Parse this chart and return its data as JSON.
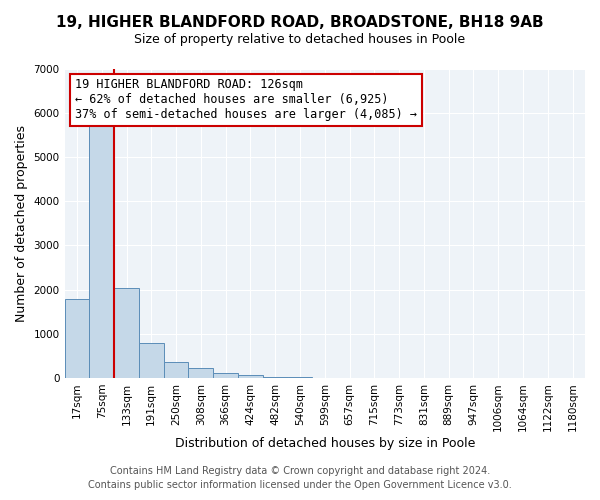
{
  "title": "19, HIGHER BLANDFORD ROAD, BROADSTONE, BH18 9AB",
  "subtitle": "Size of property relative to detached houses in Poole",
  "xlabel": "Distribution of detached houses by size in Poole",
  "ylabel": "Number of detached properties",
  "bin_labels": [
    "17sqm",
    "75sqm",
    "133sqm",
    "191sqm",
    "250sqm",
    "308sqm",
    "366sqm",
    "424sqm",
    "482sqm",
    "540sqm",
    "599sqm",
    "657sqm",
    "715sqm",
    "773sqm",
    "831sqm",
    "889sqm",
    "947sqm",
    "1006sqm",
    "1064sqm",
    "1122sqm",
    "1180sqm"
  ],
  "bar_values": [
    1780,
    5750,
    2040,
    800,
    360,
    215,
    100,
    55,
    30,
    10,
    5,
    0,
    0,
    0,
    0,
    0,
    0,
    0,
    0,
    0,
    0
  ],
  "bar_color": "#c5d8e8",
  "bar_edge_color": "#5b8db8",
  "property_line_label": "19 HIGHER BLANDFORD ROAD: 126sqm",
  "annotation_line1": "← 62% of detached houses are smaller (6,925)",
  "annotation_line2": "37% of semi-detached houses are larger (4,085) →",
  "annotation_box_color": "#ffffff",
  "annotation_box_edge": "#cc0000",
  "vline_color": "#cc0000",
  "vline_x": 1.5,
  "ylim": [
    0,
    7000
  ],
  "yticks": [
    0,
    1000,
    2000,
    3000,
    4000,
    5000,
    6000,
    7000
  ],
  "footer_line1": "Contains HM Land Registry data © Crown copyright and database right 2024.",
  "footer_line2": "Contains public sector information licensed under the Open Government Licence v3.0.",
  "title_fontsize": 11,
  "subtitle_fontsize": 9,
  "axis_label_fontsize": 9,
  "tick_fontsize": 7.5,
  "annotation_fontsize": 8.5,
  "footer_fontsize": 7
}
